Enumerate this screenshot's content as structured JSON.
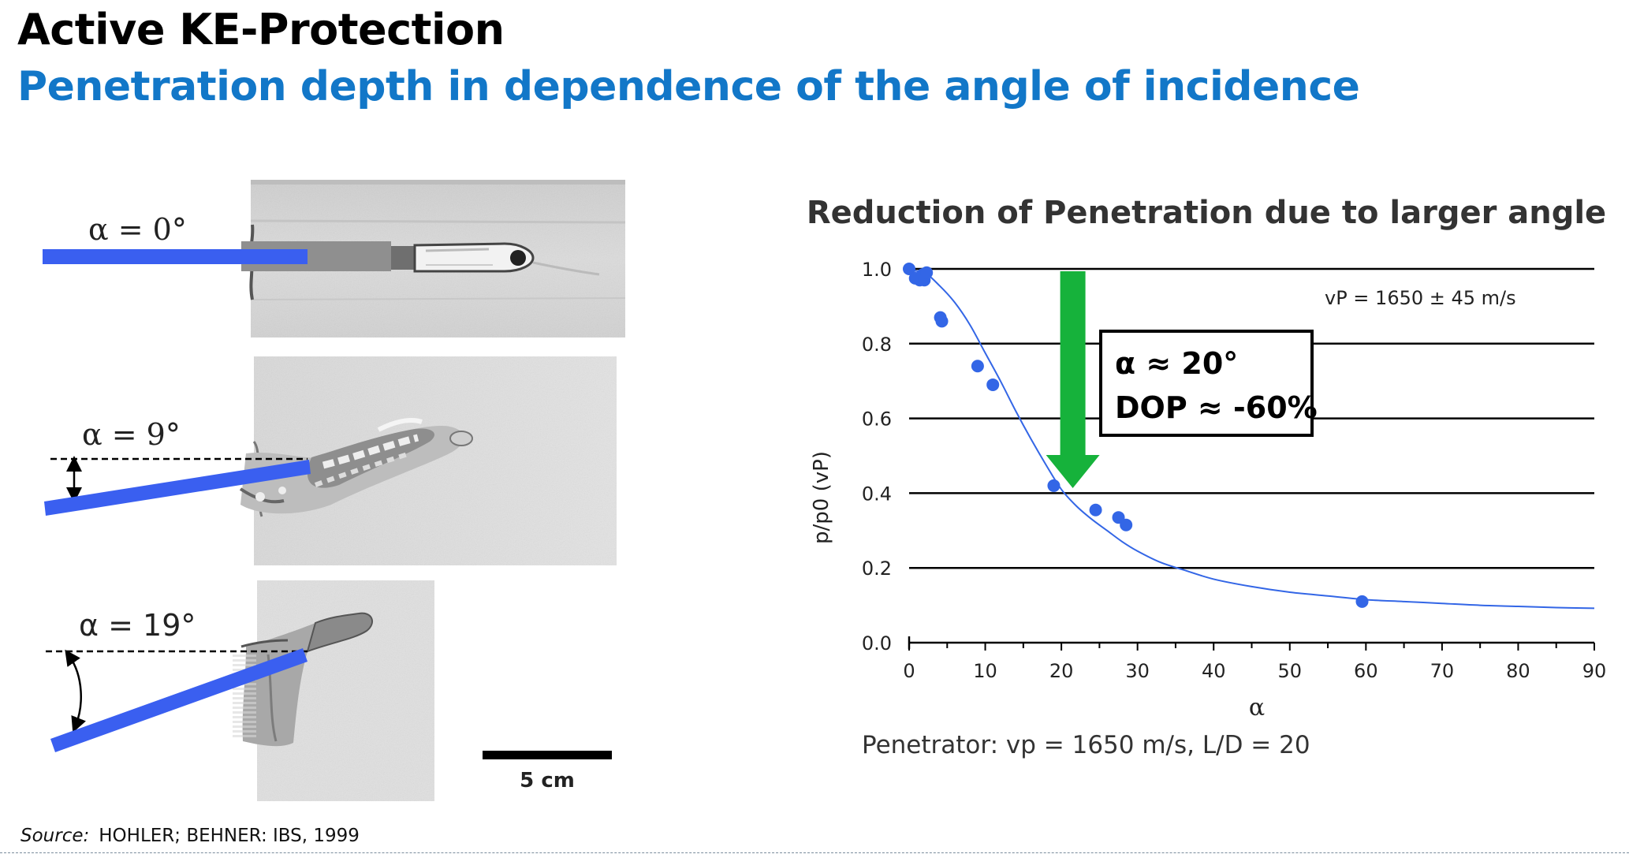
{
  "header": {
    "title": "Active KE-Protection",
    "subtitle": "Penetration depth in dependence of the angle of incidence"
  },
  "photos": {
    "labels": [
      "α = 0°",
      "α = 9°",
      "α = 19°"
    ],
    "scale_label": "5 cm"
  },
  "source": {
    "prefix": "Source:",
    "text": "HOHLER; BEHNER: IBS, 1999"
  },
  "chart_data": {
    "type": "scatter",
    "title": "Reduction of Penetration due to larger angle",
    "xlabel": "α",
    "ylabel": "p/p0 (vP)",
    "xlim": [
      0,
      90
    ],
    "ylim": [
      0,
      1.0
    ],
    "xticks": [
      "0",
      "10",
      "20",
      "30",
      "40",
      "50",
      "60",
      "70",
      "80",
      "90"
    ],
    "yticks": [
      "0.0",
      "0.2",
      "0.4",
      "0.6",
      "0.8",
      "1.0"
    ],
    "grid": "horizontal",
    "points": [
      {
        "x": 0,
        "y": 1.0
      },
      {
        "x": 0.8,
        "y": 0.975
      },
      {
        "x": 1.4,
        "y": 0.97
      },
      {
        "x": 1.8,
        "y": 0.985
      },
      {
        "x": 2.0,
        "y": 0.97
      },
      {
        "x": 2.3,
        "y": 0.99
      },
      {
        "x": 4.1,
        "y": 0.87
      },
      {
        "x": 4.3,
        "y": 0.86
      },
      {
        "x": 9.0,
        "y": 0.74
      },
      {
        "x": 11.0,
        "y": 0.69
      },
      {
        "x": 19.0,
        "y": 0.42
      },
      {
        "x": 24.5,
        "y": 0.355
      },
      {
        "x": 27.5,
        "y": 0.335
      },
      {
        "x": 28.5,
        "y": 0.315
      },
      {
        "x": 59.5,
        "y": 0.11
      }
    ],
    "fit_curve": {
      "x": [
        0,
        2,
        4,
        6,
        8,
        10,
        12,
        14,
        16,
        18,
        20,
        22,
        24,
        26,
        28,
        30,
        33,
        36,
        40,
        45,
        50,
        55,
        60,
        65,
        70,
        75,
        80,
        85,
        90
      ],
      "y": [
        0.995,
        0.99,
        0.955,
        0.91,
        0.85,
        0.775,
        0.7,
        0.62,
        0.545,
        0.475,
        0.41,
        0.365,
        0.33,
        0.3,
        0.27,
        0.245,
        0.215,
        0.195,
        0.17,
        0.15,
        0.135,
        0.125,
        0.115,
        0.11,
        0.105,
        0.1,
        0.097,
        0.094,
        0.092
      ]
    },
    "annotations": {
      "velocity": "vP = 1650 ± 45 m/s",
      "box_line1": "α ≈ 20°",
      "box_line2": "DOP ≈ -60%",
      "arrow_from_y": 1.0,
      "arrow_to_y": 0.405,
      "arrow_x": 21.5,
      "footnote": "Penetrator: vp = 1650 m/s,  L/D = 20"
    },
    "colors": {
      "points": "#3366e6",
      "curve": "#3366e6",
      "arrow": "#16b23b",
      "grid": "#000000"
    }
  }
}
